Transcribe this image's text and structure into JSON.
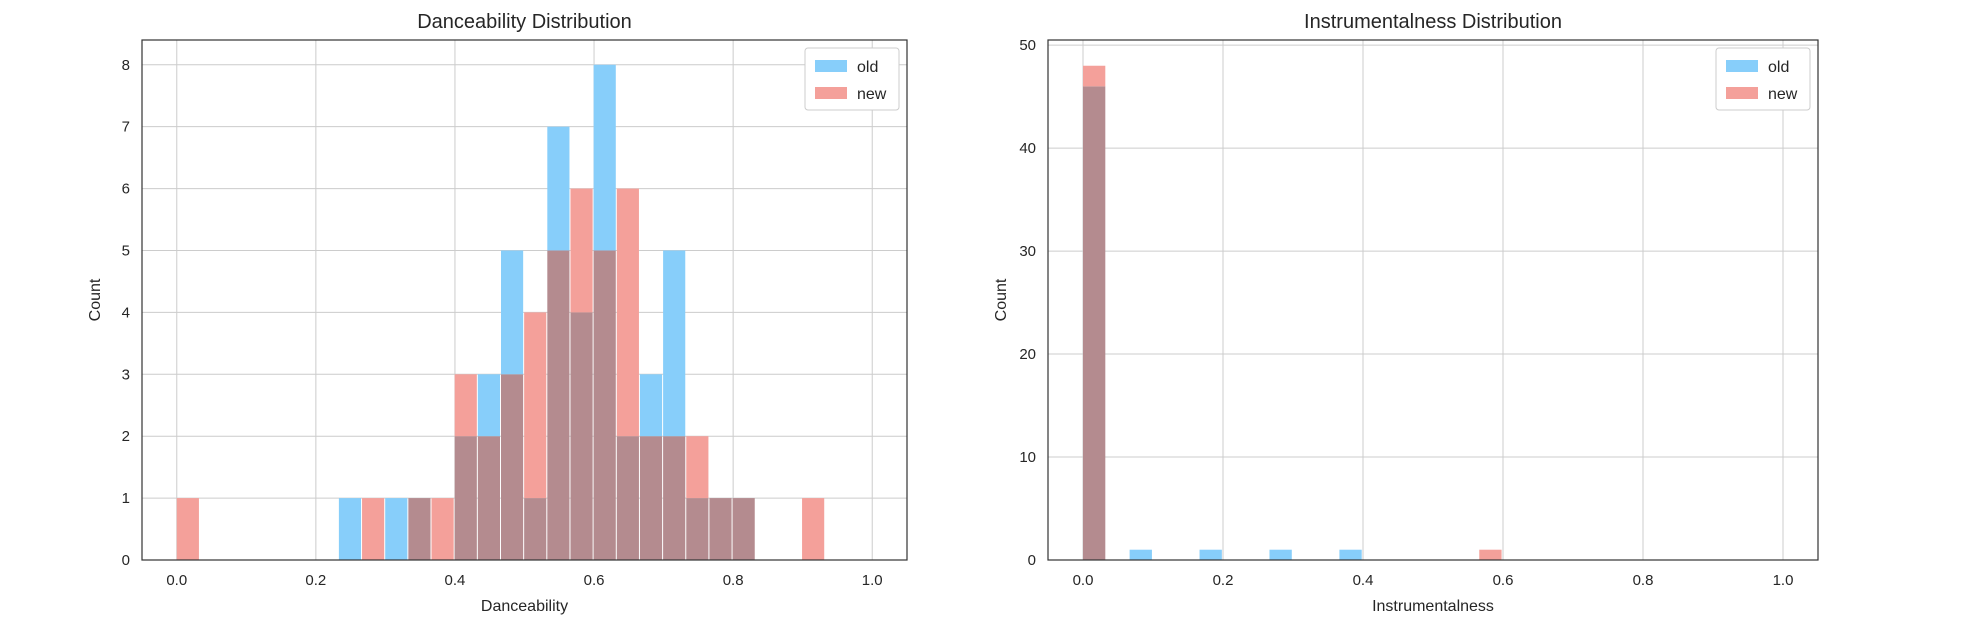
{
  "chart_data": [
    {
      "type": "bar",
      "title": "Danceability Distribution",
      "xlabel": "Danceability",
      "ylabel": "Count",
      "xlim": [
        -0.05,
        1.05
      ],
      "ylim": [
        0,
        8.4
      ],
      "xticks": [
        0.0,
        0.2,
        0.4,
        0.6,
        0.8,
        1.0
      ],
      "xtick_labels": [
        "0.0",
        "0.2",
        "0.4",
        "0.6",
        "0.8",
        "1.0"
      ],
      "yticks": [
        0,
        1,
        2,
        3,
        4,
        5,
        6,
        7,
        8
      ],
      "ytick_labels": [
        "0",
        "1",
        "2",
        "3",
        "4",
        "5",
        "6",
        "7",
        "8"
      ],
      "bin_start": 0.0,
      "bin_width": 0.0333,
      "grid": true,
      "legend": "top-right",
      "overlap_color": "#b48b8f",
      "series": [
        {
          "name": "old",
          "color": "#87cefa",
          "values": [
            0,
            0,
            0,
            0,
            0,
            0,
            0,
            1,
            0,
            1,
            1,
            0,
            2,
            3,
            5,
            1,
            7,
            4,
            8,
            2,
            3,
            5,
            1,
            1,
            1,
            0,
            0,
            0,
            0,
            0
          ]
        },
        {
          "name": "new",
          "color": "#f4a09a",
          "values": [
            1,
            0,
            0,
            0,
            0,
            0,
            0,
            0,
            1,
            0,
            1,
            1,
            3,
            2,
            3,
            4,
            5,
            6,
            5,
            6,
            2,
            2,
            2,
            1,
            1,
            0,
            0,
            1,
            0,
            0
          ]
        }
      ]
    },
    {
      "type": "bar",
      "title": "Instrumentalness Distribution",
      "xlabel": "Instrumentalness",
      "ylabel": "Count",
      "xlim": [
        -0.05,
        1.05
      ],
      "ylim": [
        0,
        50.5
      ],
      "xticks": [
        0.0,
        0.2,
        0.4,
        0.6,
        0.8,
        1.0
      ],
      "xtick_labels": [
        "0.0",
        "0.2",
        "0.4",
        "0.6",
        "0.8",
        "1.0"
      ],
      "yticks": [
        0,
        10,
        20,
        30,
        40,
        50
      ],
      "ytick_labels": [
        "0",
        "10",
        "20",
        "30",
        "40",
        "50"
      ],
      "bin_start": 0.0,
      "bin_width": 0.0333,
      "grid": true,
      "legend": "top-right",
      "overlap_color": "#b48b8f",
      "series": [
        {
          "name": "old",
          "color": "#87cefa",
          "values": [
            46,
            0,
            1,
            0,
            0,
            1,
            0,
            0,
            1,
            0,
            0,
            1,
            0,
            0,
            0,
            0,
            0,
            0,
            0,
            0,
            0,
            0,
            0,
            0,
            0,
            0,
            0,
            0,
            0,
            0
          ]
        },
        {
          "name": "new",
          "color": "#f4a09a",
          "values": [
            48,
            0,
            0,
            0,
            0,
            0,
            0,
            0,
            0,
            0,
            0,
            0,
            0,
            0,
            0,
            0,
            0,
            1,
            0,
            0,
            0,
            0,
            0,
            0,
            0,
            0,
            0,
            0,
            0,
            0
          ]
        }
      ]
    }
  ]
}
